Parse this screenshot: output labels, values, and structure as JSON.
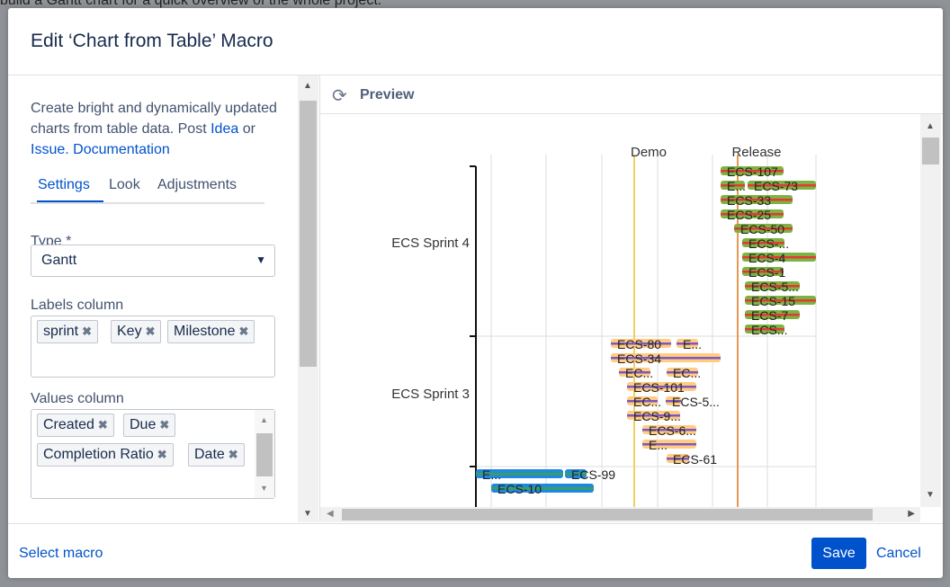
{
  "background_text": "build a Gantt chart for a quick overview of the whole project.",
  "dialog": {
    "title": "Edit ‘Chart from Table’ Macro"
  },
  "description": {
    "text": "Create bright and dynamically updated charts from table data. Post",
    "idea_link": "Idea",
    "or_text": "or",
    "issue_link": "Issue.",
    "documentation_link": "Documentation"
  },
  "tabs": [
    {
      "label": "Settings",
      "active": true
    },
    {
      "label": "Look",
      "active": false
    },
    {
      "label": "Adjustments",
      "active": false
    }
  ],
  "type_field": {
    "label": "Type *",
    "value": "Gantt"
  },
  "labels_column": {
    "label": "Labels column",
    "tags": [
      "sprint",
      "Key",
      "Milestone"
    ]
  },
  "values_column": {
    "label": "Values column",
    "tags": [
      "Created",
      "Due",
      "Completion Ratio",
      "Date"
    ]
  },
  "preview": {
    "title": "Preview",
    "refresh_icon": "refresh-icon"
  },
  "chart_data": {
    "type": "gantt",
    "milestones": [
      "Demo",
      "Release"
    ],
    "categories": [
      "ECS Sprint 4",
      "ECS Sprint 3"
    ],
    "tasks": [
      {
        "sprint": "ECS Sprint 4",
        "label": "ECS-107"
      },
      {
        "sprint": "ECS Sprint 4",
        "label": "E..."
      },
      {
        "sprint": "ECS Sprint 4",
        "label": "ECS-73"
      },
      {
        "sprint": "ECS Sprint 4",
        "label": "ECS-33"
      },
      {
        "sprint": "ECS Sprint 4",
        "label": "ECS-25"
      },
      {
        "sprint": "ECS Sprint 4",
        "label": "ECS-50"
      },
      {
        "sprint": "ECS Sprint 4",
        "label": "ECS-..."
      },
      {
        "sprint": "ECS Sprint 4",
        "label": "ECS-4"
      },
      {
        "sprint": "ECS Sprint 4",
        "label": "ECS-1"
      },
      {
        "sprint": "ECS Sprint 4",
        "label": "ECS-5..."
      },
      {
        "sprint": "ECS Sprint 4",
        "label": "ECS-15"
      },
      {
        "sprint": "ECS Sprint 4",
        "label": "ECS-7"
      },
      {
        "sprint": "ECS Sprint 4",
        "label": "ECS..."
      },
      {
        "sprint": "ECS Sprint 3",
        "label": "ECS-80"
      },
      {
        "sprint": "ECS Sprint 3",
        "label": "E..."
      },
      {
        "sprint": "ECS Sprint 3",
        "label": "ECS-34"
      },
      {
        "sprint": "ECS Sprint 3",
        "label": "EC..."
      },
      {
        "sprint": "ECS Sprint 3",
        "label": "EC..."
      },
      {
        "sprint": "ECS Sprint 3",
        "label": "ECS-101"
      },
      {
        "sprint": "ECS Sprint 3",
        "label": "EC..."
      },
      {
        "sprint": "ECS Sprint 3",
        "label": "ECS-5..."
      },
      {
        "sprint": "ECS Sprint 3",
        "label": "ECS-9..."
      },
      {
        "sprint": "ECS Sprint 3",
        "label": "ECS-6..."
      },
      {
        "sprint": "ECS Sprint 3",
        "label": "E..."
      },
      {
        "sprint": "",
        "label": "ECS-61"
      },
      {
        "sprint": "",
        "label": "E..."
      },
      {
        "sprint": "",
        "label": "ECS-99"
      },
      {
        "sprint": "",
        "label": "ECS-10"
      }
    ],
    "colors": {
      "sprint4_bar": "#7cb342",
      "sprint4_stripe": "#e53935",
      "sprint3_bar": "#ffcc80",
      "sprint3_stripe": "#7e57c2",
      "other_bar": "#1e88e5",
      "other_stripe": "#43a047",
      "demo_line": "#f0d060",
      "release_line": "#e69a50"
    }
  },
  "footer": {
    "select_macro": "Select macro",
    "save": "Save",
    "cancel": "Cancel"
  }
}
